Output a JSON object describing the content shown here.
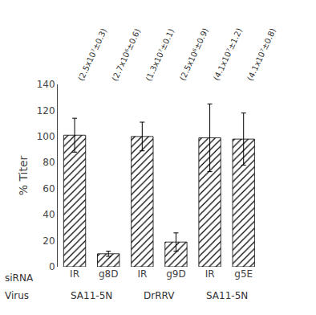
{
  "chart_data": {
    "type": "bar",
    "categories": [
      "IR",
      "g8D",
      "IR",
      "g9D",
      "IR",
      "g5E"
    ],
    "values": [
      101,
      10,
      100,
      19,
      99,
      98
    ],
    "errors": [
      13,
      2,
      11,
      7,
      26,
      20
    ],
    "annotations": [
      "(2.5x10⁷±0.3)",
      "(2.7x10⁶±0.6)",
      "(1.3x10⁷±0.1)",
      "(2.5x10⁶±0.9)",
      "(4.1x10⁷±1.2)",
      "(4.1x10⁷±0.8)"
    ],
    "color": "#d3d3d3",
    "ylabel": "% Titer",
    "ylim": [
      0,
      140
    ],
    "yticks": [
      0,
      20,
      40,
      60,
      80,
      100,
      120,
      140
    ],
    "grid": false,
    "siRNA_row_label": "siRNA",
    "virus_row_label": "Virus",
    "virus_labels": [
      "SA11-5N",
      "DrRRV",
      "SA11-5N"
    ]
  }
}
